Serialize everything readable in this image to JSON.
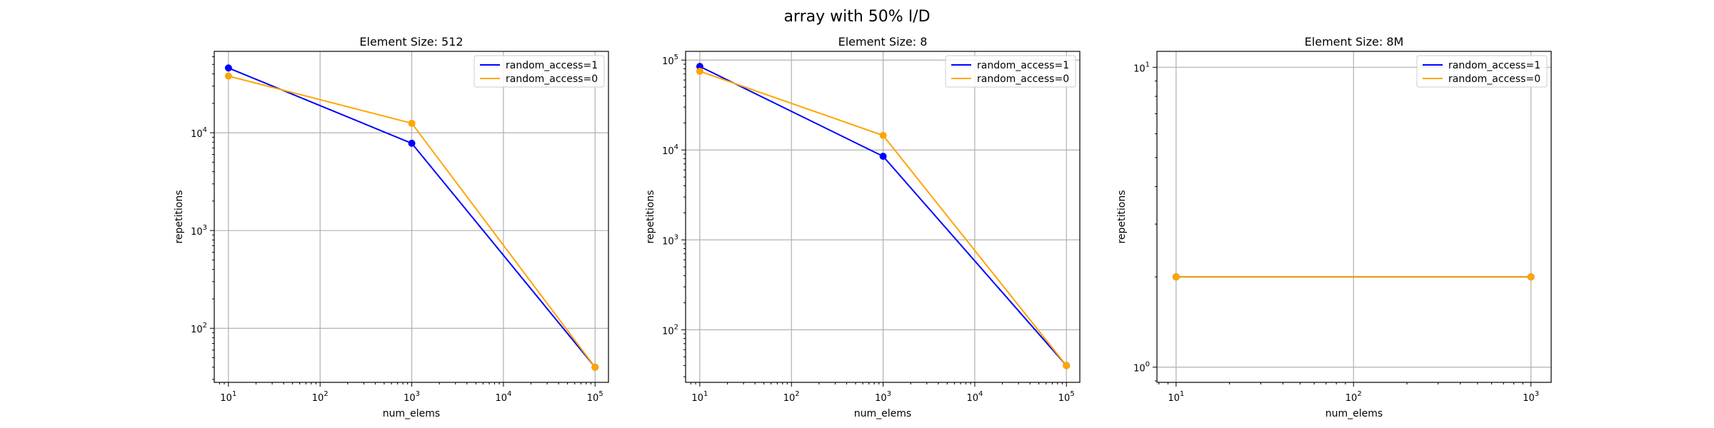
{
  "figure": {
    "suptitle": "array with 50% I/D"
  },
  "colors": {
    "random_access_1": "#0000ff",
    "random_access_0": "#ffa500",
    "grid": "#b0b0b0"
  },
  "chart_data": [
    {
      "type": "line",
      "title": "Element Size: 512",
      "xlabel": "num_elems",
      "ylabel": "repetitions",
      "xscale": "log",
      "yscale": "log",
      "xlim": [
        7,
        140000
      ],
      "ylim": [
        28,
        68000
      ],
      "xticks": [
        10,
        100,
        1000,
        10000,
        100000
      ],
      "xtick_labels": [
        [
          "10",
          "1"
        ],
        [
          "10",
          "2"
        ],
        [
          "10",
          "3"
        ],
        [
          "10",
          "4"
        ],
        [
          "10",
          "5"
        ]
      ],
      "yticks": [
        100,
        1000,
        10000
      ],
      "ytick_labels": [
        [
          "10",
          "2"
        ],
        [
          "10",
          "3"
        ],
        [
          "10",
          "4"
        ]
      ],
      "grid": true,
      "legend": "top-right",
      "series": [
        {
          "name": "random_access=1",
          "color": "#0000ff",
          "x": [
            10,
            1000,
            100000
          ],
          "y": [
            46000,
            7800,
            40
          ]
        },
        {
          "name": "random_access=0",
          "color": "#ffa500",
          "x": [
            10,
            1000,
            100000
          ],
          "y": [
            38000,
            12500,
            40
          ]
        }
      ]
    },
    {
      "type": "line",
      "title": "Element Size: 8",
      "xlabel": "num_elems",
      "ylabel": "repetitions",
      "xscale": "log",
      "yscale": "log",
      "xlim": [
        7,
        140000
      ],
      "ylim": [
        26,
        125000
      ],
      "xticks": [
        10,
        100,
        1000,
        10000,
        100000
      ],
      "xtick_labels": [
        [
          "10",
          "1"
        ],
        [
          "10",
          "2"
        ],
        [
          "10",
          "3"
        ],
        [
          "10",
          "4"
        ],
        [
          "10",
          "5"
        ]
      ],
      "yticks": [
        100,
        1000,
        10000,
        100000
      ],
      "ytick_labels": [
        [
          "10",
          "2"
        ],
        [
          "10",
          "3"
        ],
        [
          "10",
          "4"
        ],
        [
          "10",
          "5"
        ]
      ],
      "grid": true,
      "legend": "top-right",
      "series": [
        {
          "name": "random_access=1",
          "color": "#0000ff",
          "x": [
            10,
            1000,
            100000
          ],
          "y": [
            85000,
            8500,
            40
          ]
        },
        {
          "name": "random_access=0",
          "color": "#ffa500",
          "x": [
            10,
            1000,
            100000
          ],
          "y": [
            75000,
            14500,
            40
          ]
        }
      ]
    },
    {
      "type": "line",
      "title": "Element Size: 8M",
      "xlabel": "num_elems",
      "ylabel": "repetitions",
      "xscale": "log",
      "yscale": "log",
      "xlim": [
        7.8,
        1300
      ],
      "ylim": [
        0.89,
        11.3
      ],
      "xticks": [
        10,
        100,
        1000
      ],
      "xtick_labels": [
        [
          "10",
          "1"
        ],
        [
          "10",
          "2"
        ],
        [
          "10",
          "3"
        ]
      ],
      "yticks": [
        1,
        10
      ],
      "ytick_labels": [
        [
          "10",
          "0"
        ],
        [
          "10",
          "1"
        ]
      ],
      "grid": true,
      "legend": "top-right",
      "series": [
        {
          "name": "random_access=1",
          "color": "#0000ff",
          "x": [
            10,
            1000
          ],
          "y": [
            2,
            2
          ]
        },
        {
          "name": "random_access=0",
          "color": "#ffa500",
          "x": [
            10,
            1000
          ],
          "y": [
            2,
            2
          ]
        }
      ]
    }
  ]
}
